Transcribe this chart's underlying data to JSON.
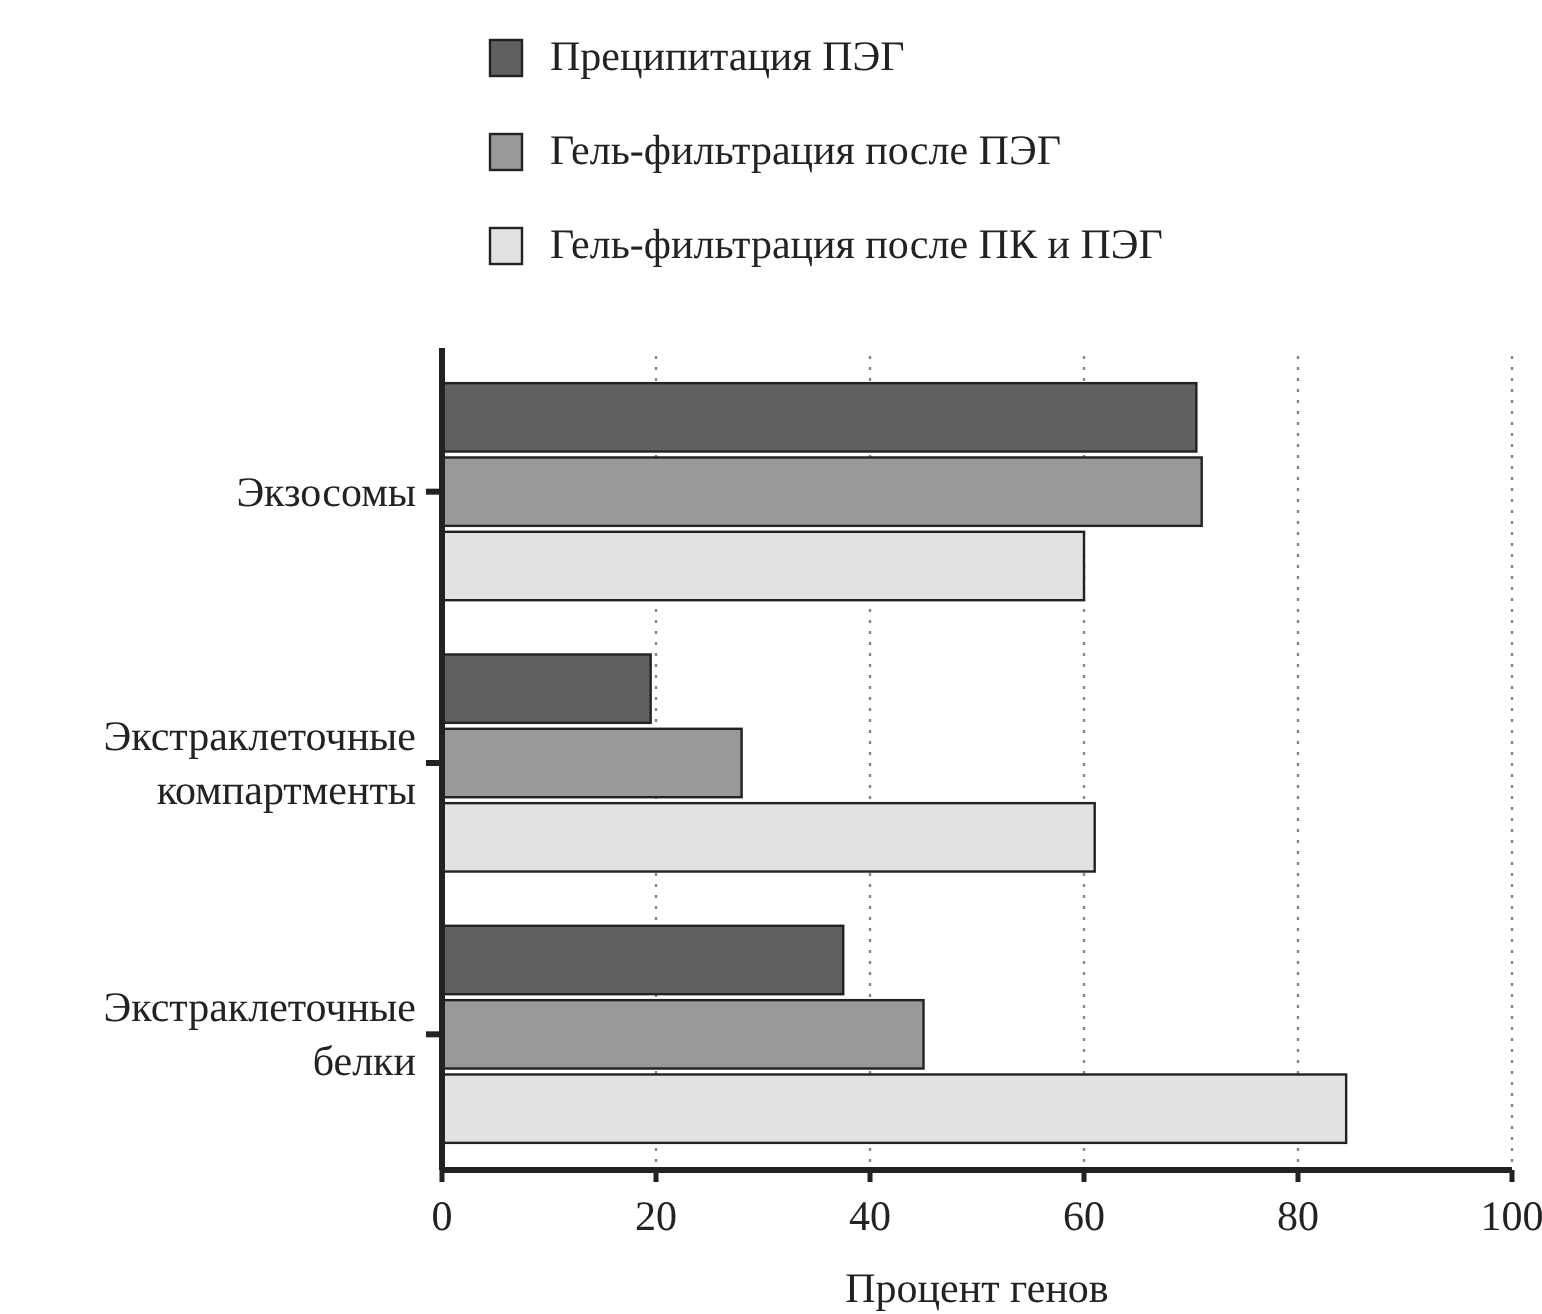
{
  "chart_data": {
    "type": "bar",
    "orientation": "horizontal",
    "xlabel": "Процент генов",
    "categories": [
      "Экзосомы",
      "Экстраклеточные компартменты",
      "Экстраклеточные белки"
    ],
    "series": [
      {
        "name": "Преципитация ПЭГ",
        "color": "#5f6062",
        "values": [
          70.5,
          19.5,
          37.5
        ]
      },
      {
        "name": "Гель-фильтрация после ПЭГ",
        "color": "#98999b",
        "values": [
          71,
          28,
          45
        ]
      },
      {
        "name": "Гель-фильтрация после ПК и ПЭГ",
        "color": "#e1e2e4",
        "values": [
          60,
          61,
          84.5
        ]
      }
    ],
    "xlim": [
      0,
      100
    ],
    "xticks": [
      0,
      20,
      40,
      60,
      80,
      100
    ],
    "grid": "x",
    "legend": "top"
  }
}
